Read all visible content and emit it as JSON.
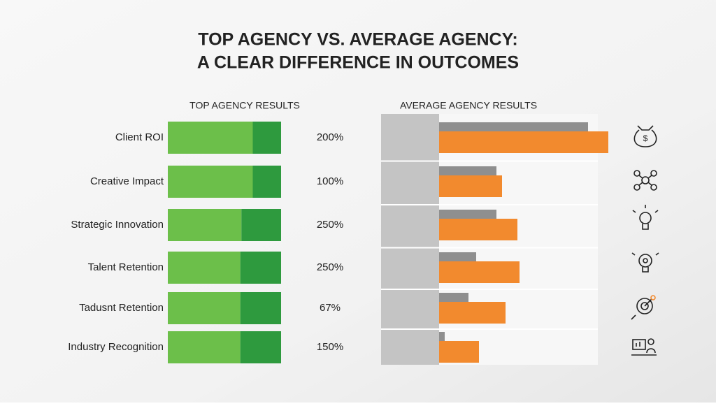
{
  "title_lines": [
    "TOP AGENCY VS. AVERAGE AGENCY:",
    "A CLEAR DIFFERENCE IN OUTCOMES"
  ],
  "chart_data": [
    {
      "type": "stacked-bar",
      "title": "TOP AGENCY RESULTS",
      "categories": [
        "Client ROI",
        "Creative Impact",
        "Strategic Innovation",
        "Talent Retention",
        "Tadusnt Retention",
        "Industry Recognition"
      ],
      "series": [
        {
          "color": "#6cbf4a",
          "values": [
            75,
            75,
            65,
            64,
            64,
            64
          ]
        },
        {
          "color": "#2e9a3e",
          "values": [
            25,
            25,
            35,
            36,
            36,
            36
          ]
        }
      ],
      "result_labels": [
        "200%",
        "100%",
        "250%",
        "250%",
        "67%",
        "150%"
      ]
    },
    {
      "type": "grouped-bar",
      "title": "AVERAGE AGENCY RESULTS",
      "series": [
        {
          "color": "#8f8f8f",
          "values": [
            213,
            82,
            82,
            53,
            42,
            8
          ]
        },
        {
          "color": "#f28a2e",
          "values": [
            242,
            90,
            112,
            115,
            95,
            57
          ]
        }
      ]
    }
  ]
}
